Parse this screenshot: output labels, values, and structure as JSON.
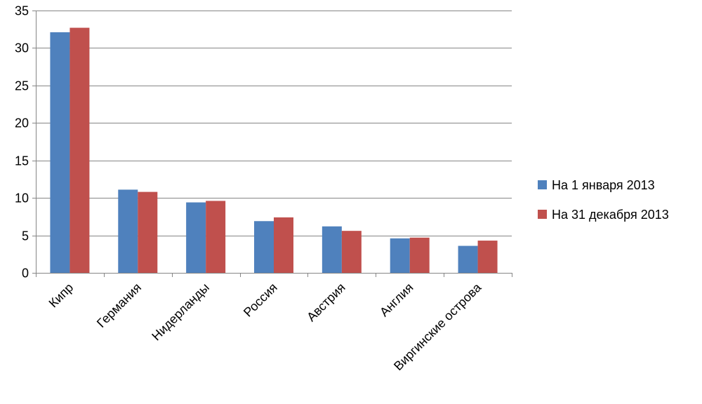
{
  "chart_data": {
    "type": "bar",
    "title": "",
    "xlabel": "",
    "ylabel": "",
    "ylim": [
      0,
      35
    ],
    "yticks": [
      0,
      5,
      10,
      15,
      20,
      25,
      30,
      35
    ],
    "grid": true,
    "legend_position": "right",
    "categories": [
      "Кипр",
      "Германия",
      "Нидерланды",
      "Россия",
      "Австрия",
      "Англия",
      "Виргинские острова"
    ],
    "series": [
      {
        "name": "На 1 января 2013",
        "color": "#4f81bd",
        "values": [
          32.1,
          11.1,
          9.4,
          6.9,
          6.2,
          4.6,
          3.6
        ]
      },
      {
        "name": "На 31 декабря 2013",
        "color": "#c0504d",
        "values": [
          32.7,
          10.8,
          9.6,
          7.4,
          5.6,
          4.7,
          4.3
        ]
      }
    ]
  }
}
